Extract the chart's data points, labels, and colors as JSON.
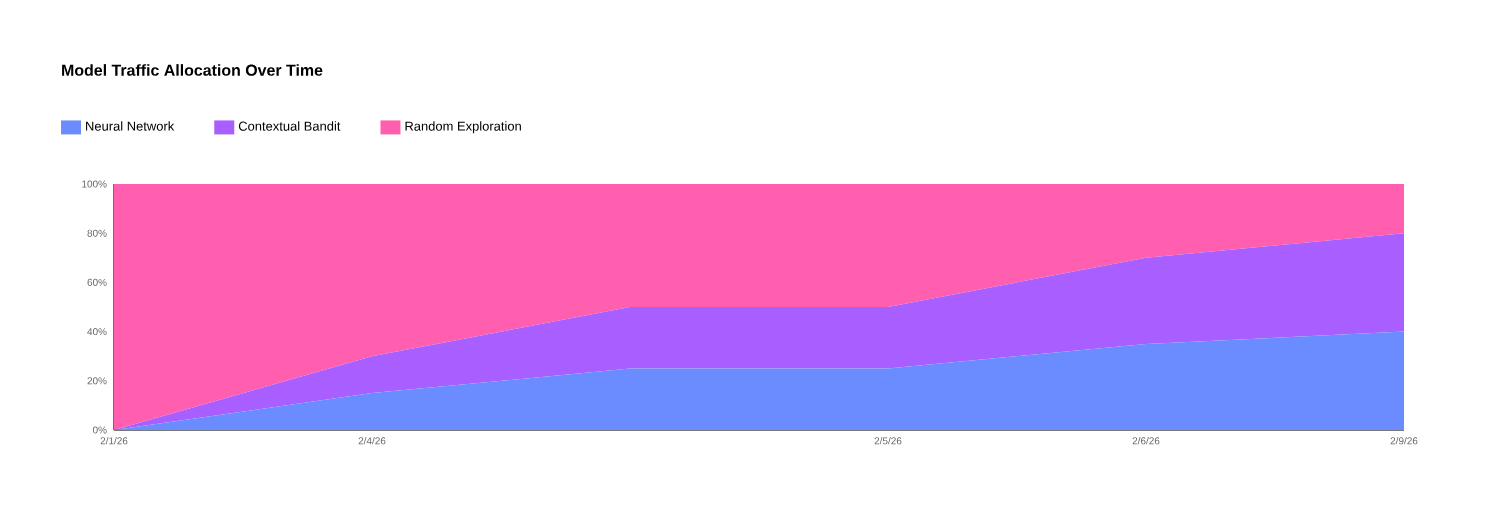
{
  "chart_data": {
    "type": "area",
    "title": "Model Traffic Allocation Over Time",
    "stacked": true,
    "legend": "top left",
    "categories": [
      "2/1/26",
      "2/4/26",
      null,
      "2/5/26",
      "2/6/26",
      "2/9/26"
    ],
    "series": [
      {
        "name": "Neural Network",
        "color": "#6b8cff",
        "values": [
          0,
          15,
          25,
          25,
          35,
          40
        ]
      },
      {
        "name": "Contextual Bandit",
        "color": "#a95eff",
        "values": [
          0,
          15,
          25,
          25,
          35,
          40
        ]
      },
      {
        "name": "Random Exploration",
        "color": "#ff5fae",
        "values": [
          100,
          70,
          50,
          50,
          30,
          20
        ]
      }
    ],
    "ylim": [
      0,
      100
    ],
    "yticks": [
      {
        "value": 0,
        "label": "0%"
      },
      {
        "value": 20,
        "label": "20%"
      },
      {
        "value": 40,
        "label": "40%"
      },
      {
        "value": 60,
        "label": "60%"
      },
      {
        "value": 80,
        "label": "80%"
      },
      {
        "value": 100,
        "label": "100%"
      }
    ]
  }
}
